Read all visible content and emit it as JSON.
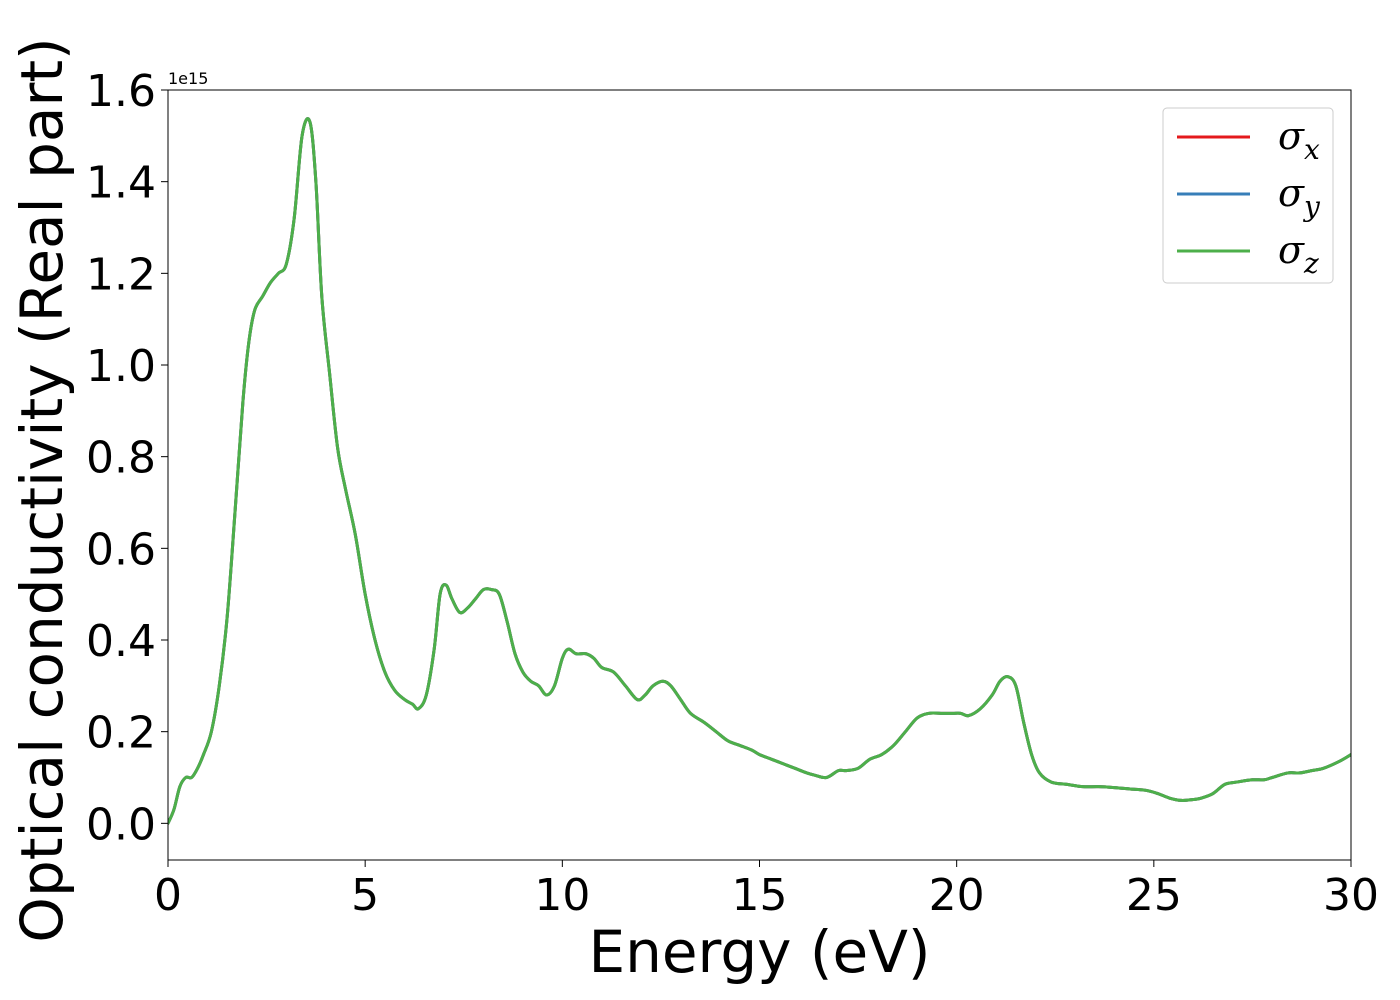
{
  "chart_data": {
    "type": "line",
    "xlabel": "Energy (eV)",
    "ylabel": "Optical conductivity (Real part)",
    "offset_text": "1e15",
    "xlim": [
      0,
      30
    ],
    "ylim": [
      -0.08,
      1.6
    ],
    "xticks": [
      0,
      5,
      10,
      15,
      20,
      25,
      30
    ],
    "xtick_labels": [
      "0",
      "5",
      "10",
      "15",
      "20",
      "25",
      "30"
    ],
    "yticks": [
      0.0,
      0.2,
      0.4,
      0.6,
      0.8,
      1.0,
      1.2,
      1.4,
      1.6
    ],
    "ytick_labels": [
      "0.0",
      "0.2",
      "0.4",
      "0.6",
      "0.8",
      "1.0",
      "1.2",
      "1.4",
      "1.6"
    ],
    "grid": false,
    "legend_position": "upper right",
    "x": [
      0,
      0.15,
      0.3,
      0.45,
      0.6,
      0.75,
      0.9,
      1.1,
      1.3,
      1.5,
      1.7,
      1.9,
      2.05,
      2.2,
      2.4,
      2.6,
      2.8,
      3.0,
      3.2,
      3.4,
      3.6,
      3.75,
      3.9,
      4.1,
      4.3,
      4.5,
      4.75,
      5.0,
      5.25,
      5.5,
      5.75,
      6.0,
      6.2,
      6.35,
      6.55,
      6.75,
      6.9,
      7.05,
      7.2,
      7.4,
      7.6,
      7.8,
      8.0,
      8.2,
      8.4,
      8.6,
      8.8,
      9.0,
      9.2,
      9.4,
      9.6,
      9.8,
      10.0,
      10.15,
      10.35,
      10.6,
      10.8,
      11.0,
      11.3,
      11.6,
      11.9,
      12.1,
      12.3,
      12.55,
      12.75,
      13.0,
      13.25,
      13.6,
      13.9,
      14.2,
      14.5,
      14.8,
      15.0,
      15.3,
      15.6,
      15.9,
      16.2,
      16.4,
      16.7,
      17.0,
      17.2,
      17.5,
      17.8,
      18.1,
      18.4,
      18.7,
      19.0,
      19.3,
      19.6,
      19.9,
      20.1,
      20.3,
      20.6,
      20.9,
      21.1,
      21.3,
      21.5,
      21.7,
      21.9,
      22.1,
      22.4,
      22.8,
      23.2,
      23.6,
      24.0,
      24.4,
      24.8,
      25.1,
      25.4,
      25.7,
      26.0,
      26.2,
      26.5,
      26.8,
      27.1,
      27.5,
      27.8,
      28.0,
      28.4,
      28.7,
      29.0,
      29.3,
      29.7,
      30.0
    ],
    "series": [
      {
        "name": "σx",
        "color": "#e41a1c",
        "y": [
          0.0,
          0.03,
          0.08,
          0.1,
          0.1,
          0.12,
          0.15,
          0.2,
          0.3,
          0.45,
          0.68,
          0.92,
          1.05,
          1.12,
          1.15,
          1.18,
          1.2,
          1.22,
          1.32,
          1.5,
          1.53,
          1.4,
          1.15,
          0.98,
          0.82,
          0.73,
          0.63,
          0.5,
          0.4,
          0.33,
          0.29,
          0.27,
          0.26,
          0.25,
          0.28,
          0.38,
          0.5,
          0.52,
          0.49,
          0.46,
          0.47,
          0.49,
          0.51,
          0.51,
          0.5,
          0.44,
          0.37,
          0.33,
          0.31,
          0.3,
          0.28,
          0.3,
          0.36,
          0.38,
          0.37,
          0.37,
          0.36,
          0.34,
          0.33,
          0.3,
          0.27,
          0.28,
          0.3,
          0.31,
          0.3,
          0.27,
          0.24,
          0.22,
          0.2,
          0.18,
          0.17,
          0.16,
          0.15,
          0.14,
          0.13,
          0.12,
          0.11,
          0.105,
          0.1,
          0.115,
          0.115,
          0.12,
          0.14,
          0.15,
          0.17,
          0.2,
          0.23,
          0.24,
          0.24,
          0.24,
          0.24,
          0.235,
          0.25,
          0.28,
          0.31,
          0.32,
          0.3,
          0.22,
          0.15,
          0.11,
          0.09,
          0.085,
          0.08,
          0.08,
          0.078,
          0.075,
          0.072,
          0.065,
          0.055,
          0.05,
          0.052,
          0.055,
          0.065,
          0.085,
          0.09,
          0.095,
          0.095,
          0.1,
          0.11,
          0.11,
          0.115,
          0.12,
          0.135,
          0.15
        ]
      },
      {
        "name": "σy",
        "color": "#377eb8",
        "y": [
          0.0,
          0.03,
          0.08,
          0.1,
          0.1,
          0.12,
          0.15,
          0.2,
          0.3,
          0.45,
          0.68,
          0.92,
          1.05,
          1.12,
          1.15,
          1.18,
          1.2,
          1.22,
          1.32,
          1.5,
          1.53,
          1.4,
          1.15,
          0.98,
          0.82,
          0.73,
          0.63,
          0.5,
          0.4,
          0.33,
          0.29,
          0.27,
          0.26,
          0.25,
          0.28,
          0.38,
          0.5,
          0.52,
          0.49,
          0.46,
          0.47,
          0.49,
          0.51,
          0.51,
          0.5,
          0.44,
          0.37,
          0.33,
          0.31,
          0.3,
          0.28,
          0.3,
          0.36,
          0.38,
          0.37,
          0.37,
          0.36,
          0.34,
          0.33,
          0.3,
          0.27,
          0.28,
          0.3,
          0.31,
          0.3,
          0.27,
          0.24,
          0.22,
          0.2,
          0.18,
          0.17,
          0.16,
          0.15,
          0.14,
          0.13,
          0.12,
          0.11,
          0.105,
          0.1,
          0.115,
          0.115,
          0.12,
          0.14,
          0.15,
          0.17,
          0.2,
          0.23,
          0.24,
          0.24,
          0.24,
          0.24,
          0.235,
          0.25,
          0.28,
          0.31,
          0.32,
          0.3,
          0.22,
          0.15,
          0.11,
          0.09,
          0.085,
          0.08,
          0.08,
          0.078,
          0.075,
          0.072,
          0.065,
          0.055,
          0.05,
          0.052,
          0.055,
          0.065,
          0.085,
          0.09,
          0.095,
          0.095,
          0.1,
          0.11,
          0.11,
          0.115,
          0.12,
          0.135,
          0.15
        ]
      },
      {
        "name": "σz",
        "color": "#4daf4a",
        "y": [
          0.0,
          0.03,
          0.08,
          0.1,
          0.1,
          0.12,
          0.15,
          0.2,
          0.3,
          0.45,
          0.68,
          0.92,
          1.05,
          1.12,
          1.15,
          1.18,
          1.2,
          1.22,
          1.32,
          1.5,
          1.53,
          1.4,
          1.15,
          0.98,
          0.82,
          0.73,
          0.63,
          0.5,
          0.4,
          0.33,
          0.29,
          0.27,
          0.26,
          0.25,
          0.28,
          0.38,
          0.5,
          0.52,
          0.49,
          0.46,
          0.47,
          0.49,
          0.51,
          0.51,
          0.5,
          0.44,
          0.37,
          0.33,
          0.31,
          0.3,
          0.28,
          0.3,
          0.36,
          0.38,
          0.37,
          0.37,
          0.36,
          0.34,
          0.33,
          0.3,
          0.27,
          0.28,
          0.3,
          0.31,
          0.3,
          0.27,
          0.24,
          0.22,
          0.2,
          0.18,
          0.17,
          0.16,
          0.15,
          0.14,
          0.13,
          0.12,
          0.11,
          0.105,
          0.1,
          0.115,
          0.115,
          0.12,
          0.14,
          0.15,
          0.17,
          0.2,
          0.23,
          0.24,
          0.24,
          0.24,
          0.24,
          0.235,
          0.25,
          0.28,
          0.31,
          0.32,
          0.3,
          0.22,
          0.15,
          0.11,
          0.09,
          0.085,
          0.08,
          0.08,
          0.078,
          0.075,
          0.072,
          0.065,
          0.055,
          0.05,
          0.052,
          0.055,
          0.065,
          0.085,
          0.09,
          0.095,
          0.095,
          0.1,
          0.11,
          0.11,
          0.115,
          0.12,
          0.135,
          0.15
        ]
      }
    ]
  }
}
